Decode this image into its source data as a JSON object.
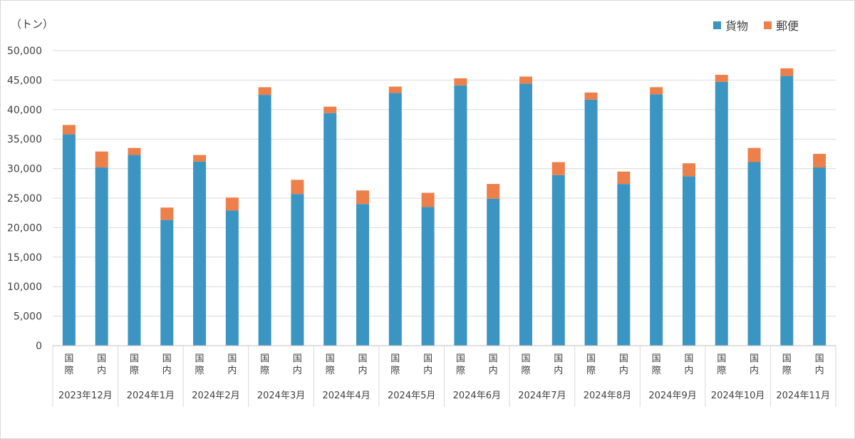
{
  "unit_label": "（トン）",
  "legend": [
    {
      "label": "貨物",
      "color": "#3a95c3"
    },
    {
      "label": "郵便",
      "color": "#ec7f4a"
    }
  ],
  "chart_data": {
    "type": "bar",
    "stacked": true,
    "title": "",
    "ylabel": "（トン）",
    "ylim": [
      0,
      50000
    ],
    "yticks": [
      "0",
      "5,000",
      "10,000",
      "15,000",
      "20,000",
      "25,000",
      "30,000",
      "35,000",
      "40,000",
      "45,000",
      "50,000"
    ],
    "grid": true,
    "legend_position": "top-right",
    "groups": [
      "2023年12月",
      "2024年1月",
      "2024年2月",
      "2024年3月",
      "2024年4月",
      "2024年5月",
      "2024年6月",
      "2024年7月",
      "2024年8月",
      "2024年9月",
      "2024年10月",
      "2024年11月"
    ],
    "sub_categories": [
      "国際",
      "国内"
    ],
    "series": [
      {
        "name": "貨物",
        "color": "#3a95c3",
        "values": [
          35800,
          30200,
          32300,
          21300,
          31200,
          22900,
          42500,
          25700,
          39400,
          24000,
          42800,
          23500,
          44100,
          24900,
          44400,
          28900,
          41700,
          27400,
          42600,
          28700,
          44700,
          31100,
          45700,
          30200
        ]
      },
      {
        "name": "郵便",
        "color": "#ec7f4a",
        "values": [
          1600,
          2700,
          1200,
          2100,
          1100,
          2200,
          1300,
          2400,
          1100,
          2300,
          1100,
          2400,
          1200,
          2500,
          1200,
          2200,
          1200,
          2100,
          1200,
          2200,
          1200,
          2400,
          1300,
          2300
        ]
      }
    ]
  }
}
